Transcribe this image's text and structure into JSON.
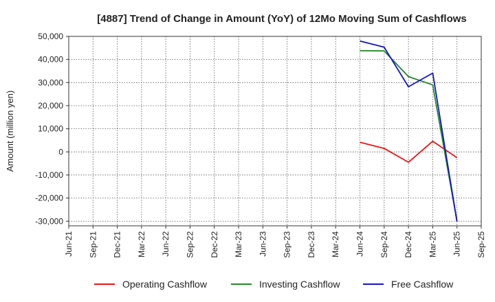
{
  "chart_data": {
    "type": "line",
    "title": "[4887]  Trend of Change in Amount (YoY) of 12Mo Moving Sum of Cashflows",
    "xlabel": "",
    "ylabel": "Amount (million yen)",
    "categories": [
      "Jun-21",
      "Sep-21",
      "Dec-21",
      "Mar-22",
      "Jun-22",
      "Sep-22",
      "Dec-22",
      "Mar-23",
      "Jun-23",
      "Sep-23",
      "Dec-23",
      "Mar-24",
      "Jun-24",
      "Sep-24",
      "Dec-24",
      "Mar-25",
      "Jun-25",
      "Sep-25"
    ],
    "ylim": [
      -32000,
      50000
    ],
    "yticks": [
      -30000,
      -20000,
      -10000,
      0,
      10000,
      20000,
      30000,
      40000,
      50000
    ],
    "ytick_labels": [
      "-30,000",
      "-20,000",
      "-10,000",
      "0",
      "10,000",
      "20,000",
      "30,000",
      "40,000",
      "50,000"
    ],
    "grid": true,
    "legend_position": "bottom",
    "series": [
      {
        "name": "Operating Cashflow",
        "color": "#ee1111",
        "values": [
          null,
          null,
          null,
          null,
          null,
          null,
          null,
          null,
          null,
          null,
          null,
          null,
          4200,
          1500,
          -4500,
          4600,
          -2500,
          null
        ]
      },
      {
        "name": "Investing Cashflow",
        "color": "#228822",
        "values": [
          null,
          null,
          null,
          null,
          null,
          null,
          null,
          null,
          null,
          null,
          null,
          null,
          43800,
          43700,
          32600,
          29000,
          -30000,
          null
        ]
      },
      {
        "name": "Free Cashflow",
        "color": "#1111cc",
        "values": [
          null,
          null,
          null,
          null,
          null,
          null,
          null,
          null,
          null,
          null,
          null,
          null,
          48000,
          45300,
          28200,
          34100,
          -30200,
          null
        ]
      }
    ]
  }
}
